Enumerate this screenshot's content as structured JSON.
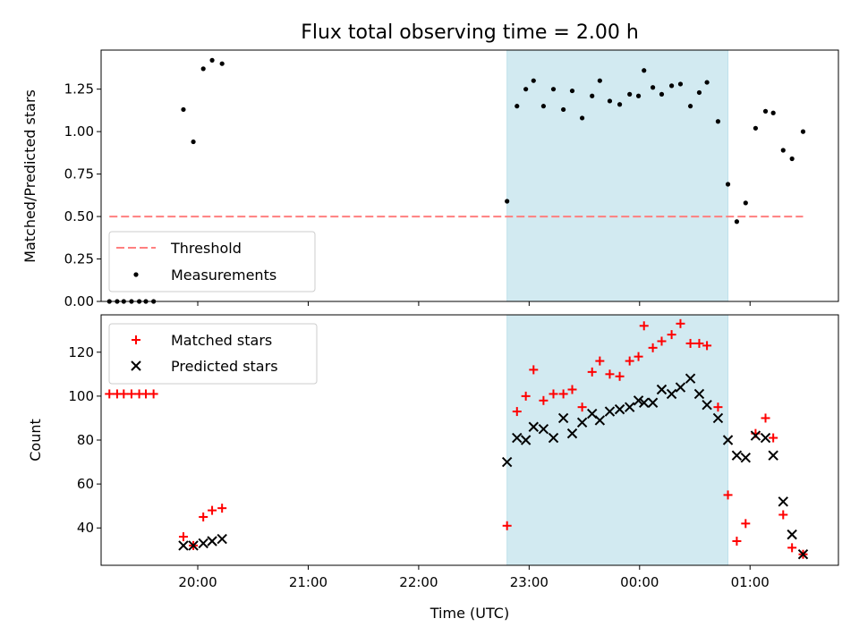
{
  "chart_data": {
    "type": "scatter",
    "title": "Flux total observing time = 2.00 h",
    "xlabel": "Time (UTC)",
    "x_axis": {
      "unit": "hours since 19:00 UTC",
      "range": [
        19.125,
        25.8
      ],
      "ticks": [
        {
          "x": 20.0,
          "label": "20:00"
        },
        {
          "x": 21.0,
          "label": "21:00"
        },
        {
          "x": 22.0,
          "label": "22:00"
        },
        {
          "x": 23.0,
          "label": "23:00"
        },
        {
          "x": 24.0,
          "label": "00:00"
        },
        {
          "x": 25.0,
          "label": "01:00"
        }
      ],
      "unlabeled_ticks": [
        22.0,
        23.0,
        24.0
      ]
    },
    "shaded_region": {
      "x": [
        22.8,
        24.8
      ],
      "color": "#add8e6"
    },
    "top_panel": {
      "ylabel": "Matched/Predicted stars",
      "ylim": [
        0,
        1.48
      ],
      "yticks": [
        {
          "v": 0.0,
          "label": "0.00"
        },
        {
          "v": 0.25,
          "label": "0.25"
        },
        {
          "v": 0.5,
          "label": "0.50"
        },
        {
          "v": 0.75,
          "label": "0.75"
        },
        {
          "v": 1.0,
          "label": "1.00"
        },
        {
          "v": 1.25,
          "label": "1.25"
        }
      ],
      "legend": {
        "position": "lower-left",
        "items": [
          "Threshold",
          "Measurements"
        ]
      },
      "threshold": {
        "name": "Threshold",
        "y": 0.5,
        "x_range": [
          19.2,
          25.48
        ],
        "color": "#ff7f7f"
      },
      "measurements": {
        "name": "Measurements",
        "color": "#000000",
        "x": [
          19.2,
          19.27,
          19.33,
          19.4,
          19.47,
          19.53,
          19.6,
          19.87,
          19.96,
          20.05,
          20.13,
          20.22,
          22.8,
          22.89,
          22.97,
          23.04,
          23.13,
          23.22,
          23.31,
          23.39,
          23.48,
          23.57,
          23.64,
          23.73,
          23.82,
          23.91,
          23.99,
          24.04,
          24.12,
          24.2,
          24.29,
          24.37,
          24.46,
          24.54,
          24.61,
          24.71,
          24.8,
          24.88,
          24.96,
          25.05,
          25.14,
          25.21,
          25.3,
          25.38,
          25.48
        ],
        "y": [
          0,
          0,
          0,
          0,
          0,
          0,
          0,
          1.13,
          0.94,
          1.37,
          1.42,
          1.4,
          0.59,
          1.15,
          1.25,
          1.3,
          1.15,
          1.25,
          1.13,
          1.24,
          1.08,
          1.21,
          1.3,
          1.18,
          1.16,
          1.22,
          1.21,
          1.36,
          1.26,
          1.22,
          1.27,
          1.28,
          1.15,
          1.23,
          1.29,
          1.06,
          0.69,
          0.47,
          0.58,
          1.02,
          1.12,
          1.11,
          0.89,
          0.84,
          1.0
        ]
      }
    },
    "bottom_panel": {
      "ylabel": "Count",
      "ylim": [
        23,
        137
      ],
      "yticks": [
        {
          "v": 40,
          "label": "40"
        },
        {
          "v": 60,
          "label": "60"
        },
        {
          "v": 80,
          "label": "80"
        },
        {
          "v": 100,
          "label": "100"
        },
        {
          "v": 120,
          "label": "120"
        }
      ],
      "legend": {
        "position": "top-left",
        "items": [
          "Matched stars",
          "Predicted stars"
        ]
      },
      "series": [
        {
          "name": "Matched stars",
          "marker": "+",
          "color": "#ff0000",
          "x": [
            19.2,
            19.27,
            19.33,
            19.4,
            19.47,
            19.53,
            19.6,
            19.87,
            19.96,
            20.05,
            20.13,
            20.22,
            22.8,
            22.89,
            22.97,
            23.04,
            23.13,
            23.22,
            23.31,
            23.39,
            23.48,
            23.57,
            23.64,
            23.73,
            23.82,
            23.91,
            23.99,
            24.04,
            24.12,
            24.2,
            24.29,
            24.37,
            24.46,
            24.54,
            24.61,
            24.71,
            24.8,
            24.88,
            24.96,
            25.05,
            25.14,
            25.21,
            25.3,
            25.38,
            25.48
          ],
          "y": [
            101,
            101,
            101,
            101,
            101,
            101,
            101,
            36,
            32,
            45,
            48,
            49,
            41,
            93,
            100,
            112,
            98,
            101,
            101,
            103,
            95,
            111,
            116,
            110,
            109,
            116,
            118,
            132,
            122,
            125,
            128,
            133,
            124,
            124,
            123,
            95,
            55,
            34,
            42,
            83,
            90,
            81,
            46,
            31,
            28
          ]
        },
        {
          "name": "Predicted stars",
          "marker": "x",
          "color": "#000000",
          "x": [
            19.87,
            19.96,
            20.05,
            20.13,
            20.22,
            22.8,
            22.89,
            22.97,
            23.04,
            23.13,
            23.22,
            23.31,
            23.39,
            23.48,
            23.57,
            23.64,
            23.73,
            23.82,
            23.91,
            23.99,
            24.04,
            24.12,
            24.2,
            24.29,
            24.37,
            24.46,
            24.54,
            24.61,
            24.71,
            24.8,
            24.88,
            24.96,
            25.05,
            25.14,
            25.21,
            25.3,
            25.38,
            25.48
          ],
          "y": [
            32,
            32,
            33,
            34,
            35,
            70,
            81,
            80,
            86,
            85,
            81,
            90,
            83,
            88,
            92,
            89,
            93,
            94,
            95,
            98,
            97,
            97,
            103,
            101,
            104,
            108,
            101,
            96,
            90,
            80,
            73,
            72,
            82,
            81,
            73,
            52,
            37,
            28
          ]
        }
      ]
    }
  }
}
